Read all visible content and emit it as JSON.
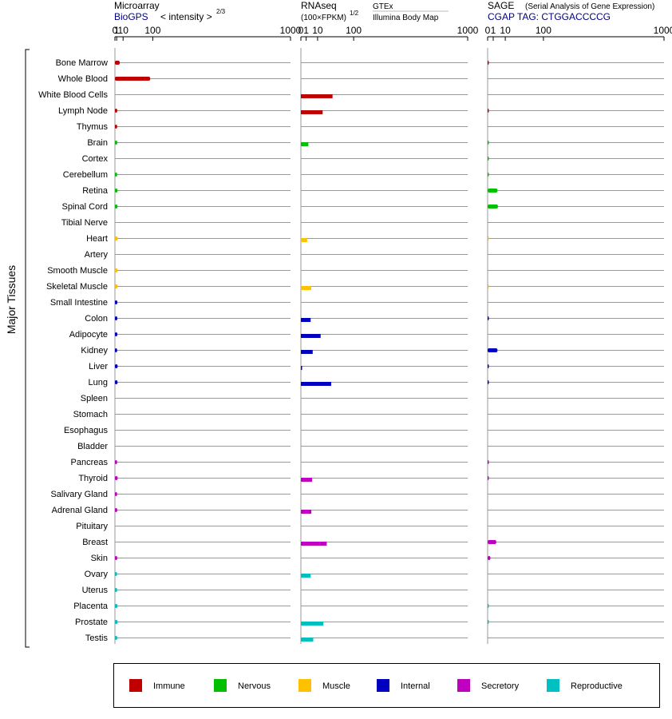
{
  "colors": {
    "Immune": "#c00000",
    "Nervous": "#00c000",
    "Muscle": "#ffc000",
    "Internal": "#0000c0",
    "Secretory": "#c000c0",
    "Reproductive": "#00c0c0",
    "link": "#000080"
  },
  "headers": {
    "microarray": {
      "title": "Microarray",
      "source": "BioGPS",
      "unit": "< intensity >",
      "exponent": "2/3"
    },
    "rnaseq": {
      "title": "RNAseq",
      "unit": "(100×FPKM)",
      "exponent": "1/2",
      "source1": "GTEx",
      "source2": "Illumina Body Map"
    },
    "sage": {
      "title": "SAGE",
      "subtitle": "(Serial Analysis of Gene Expression)",
      "tag": "CGAP  TAG: CTGGACCCCG"
    }
  },
  "y_axis_label": "Major Tissues",
  "chart_data": {
    "type": "bar",
    "title": "",
    "ylabel": "Major Tissues",
    "tissues": [
      {
        "name": "Bone Marrow",
        "system": "Immune"
      },
      {
        "name": "Whole Blood",
        "system": "Immune"
      },
      {
        "name": "White Blood Cells",
        "system": "Immune"
      },
      {
        "name": "Lymph Node",
        "system": "Immune"
      },
      {
        "name": "Thymus",
        "system": "Immune"
      },
      {
        "name": "Brain",
        "system": "Nervous"
      },
      {
        "name": "Cortex",
        "system": "Nervous"
      },
      {
        "name": "Cerebellum",
        "system": "Nervous"
      },
      {
        "name": "Retina",
        "system": "Nervous"
      },
      {
        "name": "Spinal Cord",
        "system": "Nervous"
      },
      {
        "name": "Tibial Nerve",
        "system": "Nervous"
      },
      {
        "name": "Heart",
        "system": "Muscle"
      },
      {
        "name": "Artery",
        "system": "Muscle"
      },
      {
        "name": "Smooth Muscle",
        "system": "Muscle"
      },
      {
        "name": "Skeletal Muscle",
        "system": "Muscle"
      },
      {
        "name": "Small Intestine",
        "system": "Internal"
      },
      {
        "name": "Colon",
        "system": "Internal"
      },
      {
        "name": "Adipocyte",
        "system": "Internal"
      },
      {
        "name": "Kidney",
        "system": "Internal"
      },
      {
        "name": "Liver",
        "system": "Internal"
      },
      {
        "name": "Lung",
        "system": "Internal"
      },
      {
        "name": "Spleen",
        "system": "Internal"
      },
      {
        "name": "Stomach",
        "system": "Internal"
      },
      {
        "name": "Esophagus",
        "system": "Internal"
      },
      {
        "name": "Bladder",
        "system": "Internal"
      },
      {
        "name": "Pancreas",
        "system": "Secretory"
      },
      {
        "name": "Thyroid",
        "system": "Secretory"
      },
      {
        "name": "Salivary Gland",
        "system": "Secretory"
      },
      {
        "name": "Adrenal Gland",
        "system": "Secretory"
      },
      {
        "name": "Pituitary",
        "system": "Secretory"
      },
      {
        "name": "Breast",
        "system": "Secretory"
      },
      {
        "name": "Skin",
        "system": "Secretory"
      },
      {
        "name": "Ovary",
        "system": "Reproductive"
      },
      {
        "name": "Uterus",
        "system": "Reproductive"
      },
      {
        "name": "Placenta",
        "system": "Reproductive"
      },
      {
        "name": "Prostate",
        "system": "Reproductive"
      },
      {
        "name": "Testis",
        "system": "Reproductive"
      }
    ],
    "panels": [
      {
        "id": "microarray",
        "ticks": [
          0,
          1,
          10,
          100,
          1000
        ],
        "xlim": [
          0,
          1000
        ],
        "scale": "power-2/3",
        "bar_offset": 0,
        "values": [
          4.5,
          90,
          null,
          1.5,
          1.4,
          1.5,
          null,
          1.4,
          1.8,
          1.7,
          null,
          1.9,
          null,
          1.8,
          1.8,
          1.6,
          1.6,
          1.6,
          1.4,
          1.9,
          1.8,
          null,
          null,
          null,
          null,
          1.4,
          1.9,
          1.4,
          1.5,
          null,
          null,
          1.5,
          1.3,
          1.4,
          1.7,
          1.8,
          1.5
        ]
      },
      {
        "id": "rnaseq",
        "ticks": [
          0,
          1,
          10,
          100,
          1000
        ],
        "xlim": [
          0,
          1000
        ],
        "scale": "power-1/2",
        "bar_offset": 2,
        "values": [
          null,
          null,
          36,
          17,
          null,
          2,
          null,
          null,
          null,
          null,
          null,
          1.4,
          null,
          null,
          3.8,
          null,
          3.4,
          14,
          5,
          0.02,
          33,
          null,
          null,
          null,
          null,
          null,
          4.5,
          null,
          3.9,
          null,
          24,
          null,
          3.4,
          null,
          null,
          18,
          5.5
        ]
      },
      {
        "id": "sage",
        "ticks": [
          0,
          1,
          10,
          100,
          1000
        ],
        "xlim": [
          0,
          1000
        ],
        "scale": "power-1/2",
        "bar_offset": 0,
        "values": [
          0.02,
          null,
          null,
          0.02,
          null,
          0.02,
          0.02,
          0.02,
          3.1,
          3.4,
          null,
          0.01,
          null,
          null,
          0.01,
          null,
          0.02,
          null,
          3.1,
          0.02,
          0.02,
          null,
          null,
          null,
          null,
          0.02,
          0.02,
          null,
          null,
          null,
          2.4,
          0.25,
          null,
          null,
          0.02,
          0.02,
          null
        ]
      }
    ]
  },
  "legend": {
    "items": [
      {
        "label": "Immune",
        "system": "Immune"
      },
      {
        "label": "Nervous",
        "system": "Nervous"
      },
      {
        "label": "Muscle",
        "system": "Muscle"
      },
      {
        "label": "Internal",
        "system": "Internal"
      },
      {
        "label": "Secretory",
        "system": "Secretory"
      },
      {
        "label": "Reproductive",
        "system": "Reproductive"
      }
    ]
  }
}
